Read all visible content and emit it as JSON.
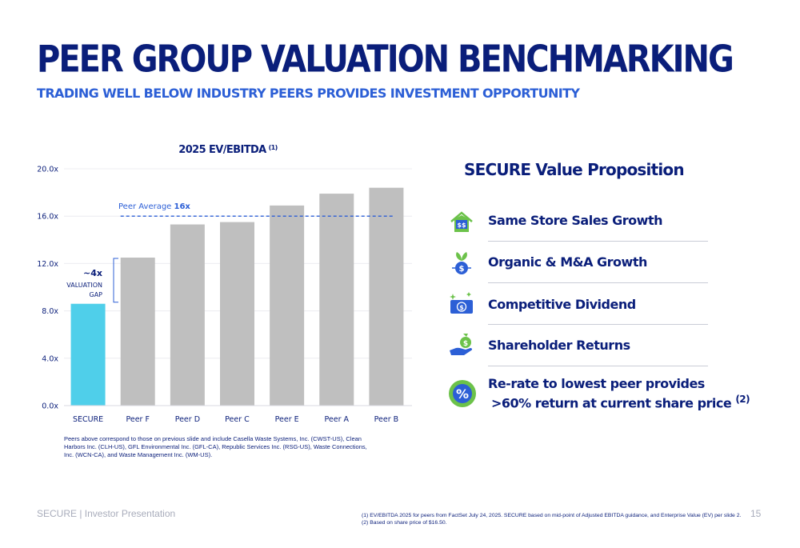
{
  "header": {
    "title": "PEER GROUP VALUATION BENCHMARKING",
    "subtitle": "TRADING WELL BELOW INDUSTRY PEERS PROVIDES INVESTMENT OPPORTUNITY"
  },
  "chart_data": {
    "type": "bar",
    "title": "2025 EV/EBITDA",
    "title_footnote": "(1)",
    "categories": [
      "SECURE",
      "Peer F",
      "Peer D",
      "Peer C",
      "Peer E",
      "Peer A",
      "Peer B"
    ],
    "values": [
      8.6,
      12.5,
      15.3,
      15.5,
      16.9,
      17.9,
      18.4
    ],
    "bar_colors": [
      "#4fcfea",
      "#bfbfbf",
      "#bfbfbf",
      "#bfbfbf",
      "#bfbfbf",
      "#bfbfbf",
      "#bfbfbf"
    ],
    "ylim": [
      0,
      20
    ],
    "yticks": [
      0,
      4,
      8,
      12,
      16,
      20
    ],
    "ytick_labels": [
      "0.0x",
      "4.0x",
      "8.0x",
      "12.0x",
      "16.0x",
      "20.0x"
    ],
    "grid": true,
    "peer_average": {
      "value": 16,
      "label_prefix": "Peer Average ",
      "label_value": "16x",
      "color": "#2c5fd6"
    },
    "gap_annotation": {
      "value": "~4x",
      "line1": "VALUATION",
      "line2": "GAP"
    }
  },
  "chart_footnote": "Peers above correspond to those on previous slide and include Casella Waste Systems, Inc. (CWST-US), Clean Harbors Inc. (CLH-US), GFL Environmental Inc. (GFL-CA), Republic Services Inc. (RSG-US), Waste Connections, Inc. (WCN-CA), and Waste Management Inc. (WM-US).",
  "value_proposition": {
    "title": "SECURE Value Proposition",
    "items": [
      {
        "label": "Same Store Sales Growth",
        "icon": "house-dollar-icon"
      },
      {
        "label": "Organic & M&A Growth",
        "icon": "plant-dollar-icon"
      },
      {
        "label": "Competitive Dividend",
        "icon": "banknote-icon"
      },
      {
        "label": "Shareholder Returns",
        "icon": "hand-moneybag-icon"
      }
    ],
    "rerate": {
      "line1": "Re-rate to lowest peer provides",
      "line2": ">60% return at current share price",
      "footnote": "(2)",
      "icon": "percent-badge-icon"
    }
  },
  "footer": {
    "brand": "SECURE  |  Investor Presentation",
    "note1": "(1) EV/EBITDA 2025 for peers from FactSet July 24, 2025. SECURE based on mid-point of Adjusted EBITDA guidance, and Enterprise Value (EV) per slide 2.",
    "note2": "(2) Based on share price of $16.50.",
    "page": "15"
  },
  "colors": {
    "navy": "#0a1e7a",
    "accent_blue": "#2c5fd6",
    "secure_bar": "#4fcfea",
    "peer_bar": "#bfbfbf",
    "icon_green": "#6cc24a"
  }
}
